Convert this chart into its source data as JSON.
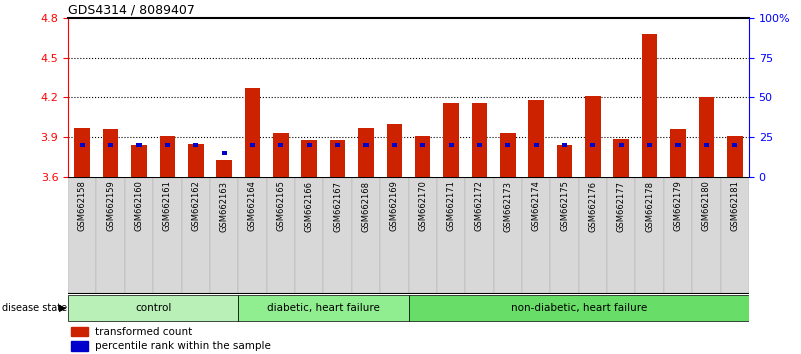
{
  "title": "GDS4314 / 8089407",
  "samples": [
    "GSM662158",
    "GSM662159",
    "GSM662160",
    "GSM662161",
    "GSM662162",
    "GSM662163",
    "GSM662164",
    "GSM662165",
    "GSM662166",
    "GSM662167",
    "GSM662168",
    "GSM662169",
    "GSM662170",
    "GSM662171",
    "GSM662172",
    "GSM662173",
    "GSM662174",
    "GSM662175",
    "GSM662176",
    "GSM662177",
    "GSM662178",
    "GSM662179",
    "GSM662180",
    "GSM662181"
  ],
  "transformed_count": [
    3.97,
    3.96,
    3.84,
    3.91,
    3.85,
    3.73,
    4.27,
    3.93,
    3.88,
    3.88,
    3.97,
    4.0,
    3.91,
    4.16,
    4.16,
    3.93,
    4.18,
    3.84,
    4.21,
    3.89,
    4.68,
    3.96,
    4.2,
    3.91
  ],
  "percentile_rank": [
    20,
    20,
    20,
    20,
    20,
    15,
    20,
    20,
    20,
    20,
    20,
    20,
    20,
    20,
    20,
    20,
    20,
    20,
    20,
    20,
    20,
    20,
    20,
    20
  ],
  "groups": [
    {
      "label": "control",
      "start": 0,
      "end": 6,
      "color": "#90ee90"
    },
    {
      "label": "diabetic, heart failure",
      "start": 6,
      "end": 12,
      "color": "#90ee90"
    },
    {
      "label": "non-diabetic, heart failure",
      "start": 12,
      "end": 24,
      "color": "#90ee90"
    }
  ],
  "ylim_left": [
    3.6,
    4.8
  ],
  "ylim_right": [
    0,
    100
  ],
  "yticks_left": [
    3.6,
    3.9,
    4.2,
    4.5,
    4.8
  ],
  "yticks_right": [
    0,
    25,
    50,
    75,
    100
  ],
  "yticklabels_right": [
    "0",
    "25",
    "50",
    "75",
    "100%"
  ],
  "bar_color_red": "#cc2200",
  "bar_color_blue": "#0000cc",
  "bar_width": 0.55,
  "blue_bar_width": 0.18,
  "base": 3.6,
  "tick_bg_color": "#d8d8d8",
  "white": "#ffffff"
}
